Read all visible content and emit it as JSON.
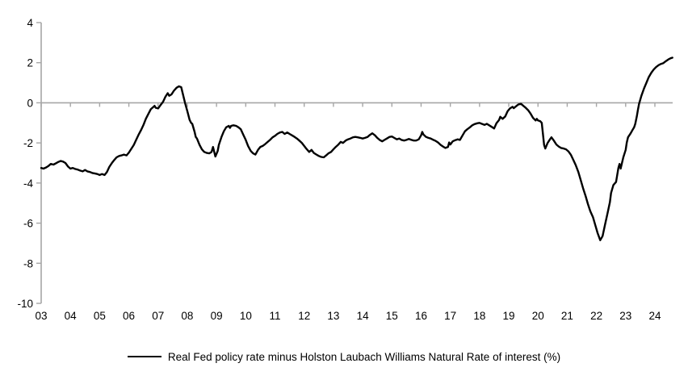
{
  "legend": {
    "label": "Real Fed policy rate minus Holston Laubach Williams Natural Rate of interest (%)"
  },
  "chart_data": {
    "type": "line",
    "title": "",
    "xlabel": "",
    "ylabel": "",
    "grid": false,
    "legend_position": "bottom",
    "axis_color": "#a6a6a6",
    "tick_label_color": "#000000",
    "line_color": "#000000",
    "ylim": [
      -10,
      4
    ],
    "y_ticks": [
      4,
      2,
      0,
      -2,
      -4,
      -6,
      -8,
      -10
    ],
    "x_tick_labels": [
      "03",
      "04",
      "05",
      "06",
      "07",
      "08",
      "09",
      "10",
      "11",
      "12",
      "13",
      "14",
      "15",
      "16",
      "17",
      "18",
      "19",
      "20",
      "21",
      "22",
      "23",
      "24"
    ],
    "x_tick_years": [
      2003,
      2004,
      2005,
      2006,
      2007,
      2008,
      2009,
      2010,
      2011,
      2012,
      2013,
      2014,
      2015,
      2016,
      2017,
      2018,
      2019,
      2020,
      2021,
      2022,
      2023,
      2024
    ],
    "zero_line": true,
    "series": [
      {
        "name": "Real Fed policy rate minus Holston Laubach Williams Natural Rate of interest (%)",
        "color": "#000000",
        "points": [
          [
            2003.0,
            -3.25
          ],
          [
            2003.08,
            -3.28
          ],
          [
            2003.17,
            -3.22
          ],
          [
            2003.25,
            -3.15
          ],
          [
            2003.33,
            -3.05
          ],
          [
            2003.42,
            -3.08
          ],
          [
            2003.5,
            -3.02
          ],
          [
            2003.58,
            -2.95
          ],
          [
            2003.67,
            -2.9
          ],
          [
            2003.75,
            -2.93
          ],
          [
            2003.83,
            -3.0
          ],
          [
            2003.92,
            -3.18
          ],
          [
            2004.0,
            -3.28
          ],
          [
            2004.08,
            -3.25
          ],
          [
            2004.17,
            -3.3
          ],
          [
            2004.25,
            -3.33
          ],
          [
            2004.33,
            -3.38
          ],
          [
            2004.42,
            -3.42
          ],
          [
            2004.5,
            -3.35
          ],
          [
            2004.58,
            -3.42
          ],
          [
            2004.67,
            -3.45
          ],
          [
            2004.75,
            -3.5
          ],
          [
            2004.83,
            -3.52
          ],
          [
            2004.92,
            -3.55
          ],
          [
            2005.0,
            -3.6
          ],
          [
            2005.08,
            -3.55
          ],
          [
            2005.17,
            -3.6
          ],
          [
            2005.25,
            -3.45
          ],
          [
            2005.33,
            -3.2
          ],
          [
            2005.42,
            -3.0
          ],
          [
            2005.5,
            -2.85
          ],
          [
            2005.58,
            -2.72
          ],
          [
            2005.67,
            -2.65
          ],
          [
            2005.75,
            -2.62
          ],
          [
            2005.83,
            -2.58
          ],
          [
            2005.92,
            -2.62
          ],
          [
            2006.0,
            -2.48
          ],
          [
            2006.08,
            -2.3
          ],
          [
            2006.17,
            -2.1
          ],
          [
            2006.25,
            -1.85
          ],
          [
            2006.33,
            -1.6
          ],
          [
            2006.42,
            -1.35
          ],
          [
            2006.5,
            -1.1
          ],
          [
            2006.58,
            -0.8
          ],
          [
            2006.67,
            -0.55
          ],
          [
            2006.75,
            -0.32
          ],
          [
            2006.83,
            -0.22
          ],
          [
            2006.88,
            -0.15
          ],
          [
            2006.92,
            -0.25
          ],
          [
            2007.0,
            -0.28
          ],
          [
            2007.08,
            -0.12
          ],
          [
            2007.17,
            0.05
          ],
          [
            2007.25,
            0.3
          ],
          [
            2007.33,
            0.48
          ],
          [
            2007.38,
            0.35
          ],
          [
            2007.46,
            0.42
          ],
          [
            2007.54,
            0.6
          ],
          [
            2007.63,
            0.75
          ],
          [
            2007.71,
            0.82
          ],
          [
            2007.79,
            0.78
          ],
          [
            2007.83,
            0.55
          ],
          [
            2007.88,
            0.25
          ],
          [
            2007.92,
            0.0
          ],
          [
            2008.0,
            -0.4
          ],
          [
            2008.08,
            -0.85
          ],
          [
            2008.13,
            -1.0
          ],
          [
            2008.17,
            -1.05
          ],
          [
            2008.25,
            -1.45
          ],
          [
            2008.29,
            -1.7
          ],
          [
            2008.33,
            -1.78
          ],
          [
            2008.42,
            -2.1
          ],
          [
            2008.5,
            -2.32
          ],
          [
            2008.58,
            -2.45
          ],
          [
            2008.67,
            -2.5
          ],
          [
            2008.75,
            -2.52
          ],
          [
            2008.83,
            -2.45
          ],
          [
            2008.88,
            -2.2
          ],
          [
            2008.96,
            -2.68
          ],
          [
            2009.04,
            -2.4
          ],
          [
            2009.08,
            -2.1
          ],
          [
            2009.17,
            -1.7
          ],
          [
            2009.25,
            -1.42
          ],
          [
            2009.33,
            -1.22
          ],
          [
            2009.42,
            -1.15
          ],
          [
            2009.46,
            -1.25
          ],
          [
            2009.5,
            -1.15
          ],
          [
            2009.58,
            -1.12
          ],
          [
            2009.67,
            -1.15
          ],
          [
            2009.75,
            -1.22
          ],
          [
            2009.83,
            -1.32
          ],
          [
            2009.92,
            -1.6
          ],
          [
            2010.0,
            -1.85
          ],
          [
            2010.08,
            -2.15
          ],
          [
            2010.17,
            -2.4
          ],
          [
            2010.25,
            -2.52
          ],
          [
            2010.33,
            -2.58
          ],
          [
            2010.42,
            -2.35
          ],
          [
            2010.5,
            -2.2
          ],
          [
            2010.58,
            -2.15
          ],
          [
            2010.67,
            -2.05
          ],
          [
            2010.75,
            -1.95
          ],
          [
            2010.83,
            -1.85
          ],
          [
            2010.92,
            -1.72
          ],
          [
            2011.0,
            -1.65
          ],
          [
            2011.08,
            -1.55
          ],
          [
            2011.17,
            -1.48
          ],
          [
            2011.25,
            -1.45
          ],
          [
            2011.33,
            -1.55
          ],
          [
            2011.42,
            -1.48
          ],
          [
            2011.5,
            -1.55
          ],
          [
            2011.58,
            -1.62
          ],
          [
            2011.67,
            -1.7
          ],
          [
            2011.75,
            -1.78
          ],
          [
            2011.83,
            -1.88
          ],
          [
            2011.92,
            -2.0
          ],
          [
            2012.0,
            -2.15
          ],
          [
            2012.08,
            -2.3
          ],
          [
            2012.17,
            -2.45
          ],
          [
            2012.25,
            -2.35
          ],
          [
            2012.33,
            -2.5
          ],
          [
            2012.42,
            -2.58
          ],
          [
            2012.5,
            -2.65
          ],
          [
            2012.58,
            -2.7
          ],
          [
            2012.67,
            -2.72
          ],
          [
            2012.75,
            -2.62
          ],
          [
            2012.83,
            -2.52
          ],
          [
            2012.92,
            -2.45
          ],
          [
            2013.0,
            -2.32
          ],
          [
            2013.08,
            -2.2
          ],
          [
            2013.17,
            -2.08
          ],
          [
            2013.25,
            -1.95
          ],
          [
            2013.33,
            -2.0
          ],
          [
            2013.42,
            -1.88
          ],
          [
            2013.5,
            -1.82
          ],
          [
            2013.58,
            -1.78
          ],
          [
            2013.67,
            -1.72
          ],
          [
            2013.75,
            -1.7
          ],
          [
            2013.83,
            -1.72
          ],
          [
            2013.92,
            -1.75
          ],
          [
            2014.0,
            -1.78
          ],
          [
            2014.08,
            -1.75
          ],
          [
            2014.17,
            -1.7
          ],
          [
            2014.25,
            -1.6
          ],
          [
            2014.33,
            -1.52
          ],
          [
            2014.42,
            -1.62
          ],
          [
            2014.5,
            -1.75
          ],
          [
            2014.58,
            -1.85
          ],
          [
            2014.67,
            -1.92
          ],
          [
            2014.75,
            -1.85
          ],
          [
            2014.83,
            -1.78
          ],
          [
            2014.92,
            -1.7
          ],
          [
            2015.0,
            -1.68
          ],
          [
            2015.08,
            -1.75
          ],
          [
            2015.17,
            -1.82
          ],
          [
            2015.25,
            -1.78
          ],
          [
            2015.33,
            -1.85
          ],
          [
            2015.42,
            -1.88
          ],
          [
            2015.5,
            -1.85
          ],
          [
            2015.58,
            -1.8
          ],
          [
            2015.67,
            -1.85
          ],
          [
            2015.75,
            -1.88
          ],
          [
            2015.83,
            -1.88
          ],
          [
            2015.92,
            -1.82
          ],
          [
            2016.0,
            -1.62
          ],
          [
            2016.04,
            -1.45
          ],
          [
            2016.08,
            -1.58
          ],
          [
            2016.17,
            -1.7
          ],
          [
            2016.25,
            -1.75
          ],
          [
            2016.33,
            -1.78
          ],
          [
            2016.42,
            -1.85
          ],
          [
            2016.5,
            -1.9
          ],
          [
            2016.58,
            -1.98
          ],
          [
            2016.67,
            -2.1
          ],
          [
            2016.75,
            -2.18
          ],
          [
            2016.83,
            -2.25
          ],
          [
            2016.92,
            -2.2
          ],
          [
            2016.96,
            -1.98
          ],
          [
            2017.0,
            -2.08
          ],
          [
            2017.08,
            -1.92
          ],
          [
            2017.17,
            -1.86
          ],
          [
            2017.25,
            -1.82
          ],
          [
            2017.33,
            -1.85
          ],
          [
            2017.42,
            -1.62
          ],
          [
            2017.5,
            -1.42
          ],
          [
            2017.58,
            -1.32
          ],
          [
            2017.67,
            -1.22
          ],
          [
            2017.75,
            -1.12
          ],
          [
            2017.83,
            -1.06
          ],
          [
            2017.92,
            -1.02
          ],
          [
            2018.0,
            -1.0
          ],
          [
            2018.08,
            -1.05
          ],
          [
            2018.17,
            -1.1
          ],
          [
            2018.25,
            -1.05
          ],
          [
            2018.33,
            -1.12
          ],
          [
            2018.42,
            -1.2
          ],
          [
            2018.5,
            -1.28
          ],
          [
            2018.58,
            -1.02
          ],
          [
            2018.67,
            -0.85
          ],
          [
            2018.71,
            -0.7
          ],
          [
            2018.79,
            -0.8
          ],
          [
            2018.88,
            -0.68
          ],
          [
            2018.96,
            -0.42
          ],
          [
            2019.04,
            -0.28
          ],
          [
            2019.13,
            -0.2
          ],
          [
            2019.17,
            -0.27
          ],
          [
            2019.25,
            -0.17
          ],
          [
            2019.33,
            -0.08
          ],
          [
            2019.42,
            -0.05
          ],
          [
            2019.5,
            -0.15
          ],
          [
            2019.58,
            -0.25
          ],
          [
            2019.67,
            -0.38
          ],
          [
            2019.75,
            -0.55
          ],
          [
            2019.83,
            -0.75
          ],
          [
            2019.92,
            -0.88
          ],
          [
            2019.96,
            -0.8
          ],
          [
            2020.0,
            -0.88
          ],
          [
            2020.08,
            -0.92
          ],
          [
            2020.13,
            -1.0
          ],
          [
            2020.21,
            -2.1
          ],
          [
            2020.25,
            -2.28
          ],
          [
            2020.33,
            -2.0
          ],
          [
            2020.42,
            -1.8
          ],
          [
            2020.46,
            -1.72
          ],
          [
            2020.54,
            -1.88
          ],
          [
            2020.63,
            -2.08
          ],
          [
            2020.71,
            -2.18
          ],
          [
            2020.79,
            -2.25
          ],
          [
            2020.88,
            -2.28
          ],
          [
            2020.96,
            -2.32
          ],
          [
            2021.04,
            -2.42
          ],
          [
            2021.13,
            -2.6
          ],
          [
            2021.21,
            -2.85
          ],
          [
            2021.29,
            -3.1
          ],
          [
            2021.38,
            -3.45
          ],
          [
            2021.46,
            -3.85
          ],
          [
            2021.54,
            -4.25
          ],
          [
            2021.63,
            -4.65
          ],
          [
            2021.71,
            -5.05
          ],
          [
            2021.79,
            -5.4
          ],
          [
            2021.88,
            -5.7
          ],
          [
            2021.96,
            -6.1
          ],
          [
            2022.04,
            -6.5
          ],
          [
            2022.13,
            -6.85
          ],
          [
            2022.21,
            -6.65
          ],
          [
            2022.29,
            -6.1
          ],
          [
            2022.38,
            -5.5
          ],
          [
            2022.46,
            -4.95
          ],
          [
            2022.5,
            -4.5
          ],
          [
            2022.58,
            -4.1
          ],
          [
            2022.67,
            -3.95
          ],
          [
            2022.75,
            -3.25
          ],
          [
            2022.79,
            -3.05
          ],
          [
            2022.83,
            -3.28
          ],
          [
            2022.92,
            -2.72
          ],
          [
            2023.0,
            -2.35
          ],
          [
            2023.04,
            -1.98
          ],
          [
            2023.08,
            -1.72
          ],
          [
            2023.17,
            -1.52
          ],
          [
            2023.25,
            -1.32
          ],
          [
            2023.29,
            -1.22
          ],
          [
            2023.33,
            -1.05
          ],
          [
            2023.38,
            -0.68
          ],
          [
            2023.42,
            -0.35
          ],
          [
            2023.46,
            -0.05
          ],
          [
            2023.54,
            0.35
          ],
          [
            2023.63,
            0.72
          ],
          [
            2023.71,
            1.0
          ],
          [
            2023.79,
            1.28
          ],
          [
            2023.88,
            1.5
          ],
          [
            2023.96,
            1.66
          ],
          [
            2024.04,
            1.78
          ],
          [
            2024.13,
            1.88
          ],
          [
            2024.21,
            1.94
          ],
          [
            2024.29,
            1.98
          ],
          [
            2024.38,
            2.08
          ],
          [
            2024.46,
            2.16
          ],
          [
            2024.54,
            2.22
          ],
          [
            2024.6,
            2.25
          ]
        ]
      }
    ]
  }
}
